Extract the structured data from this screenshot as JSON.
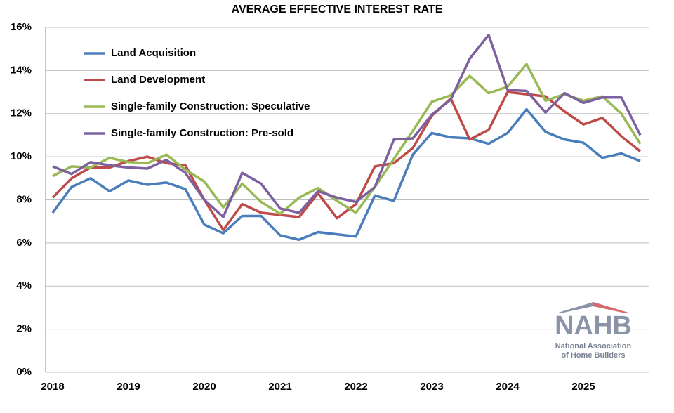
{
  "chart_data": {
    "type": "line",
    "title": "AVERAGE EFFECTIVE INTEREST RATE",
    "categories": [
      "2018",
      null,
      null,
      null,
      "2019",
      null,
      null,
      null,
      "2020",
      null,
      null,
      null,
      "2021",
      null,
      null,
      null,
      "2022",
      null,
      null,
      null,
      "2023",
      null,
      null,
      null,
      "2024",
      null,
      null,
      null,
      "2025",
      null,
      null,
      null
    ],
    "series": [
      {
        "name": "Land Acquisition",
        "color": "#4a7ebb",
        "values": [
          7.4,
          8.6,
          9.0,
          8.4,
          8.9,
          8.7,
          8.8,
          8.5,
          6.85,
          6.45,
          7.25,
          7.25,
          6.35,
          6.15,
          6.5,
          6.4,
          6.3,
          8.2,
          7.95,
          10.1,
          11.1,
          10.9,
          10.85,
          10.6,
          11.1,
          12.2,
          11.15,
          10.8,
          10.65,
          9.95,
          10.15,
          9.8
        ]
      },
      {
        "name": "Land Development",
        "color": "#be4b48",
        "values": [
          8.1,
          9.0,
          9.5,
          9.5,
          9.8,
          10.0,
          9.7,
          9.6,
          8.0,
          6.6,
          7.8,
          7.4,
          7.3,
          7.2,
          8.3,
          7.15,
          7.8,
          9.55,
          9.7,
          10.4,
          11.9,
          12.7,
          10.8,
          11.25,
          13.0,
          12.9,
          12.8,
          12.1,
          11.5,
          11.8,
          10.95,
          10.25
        ]
      },
      {
        "name": "Single-family Construction: Speculative",
        "color": "#98b954",
        "values": [
          9.1,
          9.55,
          9.5,
          9.95,
          9.75,
          9.7,
          10.1,
          9.4,
          8.85,
          7.65,
          8.75,
          7.9,
          7.35,
          8.1,
          8.55,
          7.95,
          7.4,
          8.6,
          9.9,
          11.2,
          12.55,
          12.85,
          13.75,
          12.95,
          13.25,
          14.3,
          12.6,
          12.9,
          12.6,
          12.8,
          12.0,
          10.6
        ]
      },
      {
        "name": "Single-family Construction: Pre-sold",
        "color": "#7d60a0",
        "values": [
          9.55,
          9.2,
          9.75,
          9.6,
          9.5,
          9.45,
          9.85,
          9.25,
          8.0,
          7.2,
          9.25,
          8.75,
          7.6,
          7.4,
          8.4,
          8.1,
          7.9,
          8.6,
          10.8,
          10.85,
          11.95,
          12.65,
          14.55,
          15.65,
          13.1,
          13.05,
          12.05,
          12.95,
          12.5,
          12.75,
          12.75,
          11.0
        ]
      }
    ],
    "ylim": [
      0,
      16
    ],
    "yticks": [
      {
        "value": 0,
        "label": "0%"
      },
      {
        "value": 2,
        "label": "2%"
      },
      {
        "value": 4,
        "label": "4%"
      },
      {
        "value": 6,
        "label": "6%"
      },
      {
        "value": 8,
        "label": "8%"
      },
      {
        "value": 10,
        "label": "10%"
      },
      {
        "value": 12,
        "label": "12%"
      },
      {
        "value": 14,
        "label": "14%"
      },
      {
        "value": 16,
        "label": "16%"
      }
    ],
    "grid": true,
    "legend": "upper left",
    "logo": [
      "NAHB",
      "National Association",
      "of Home Builders"
    ]
  }
}
